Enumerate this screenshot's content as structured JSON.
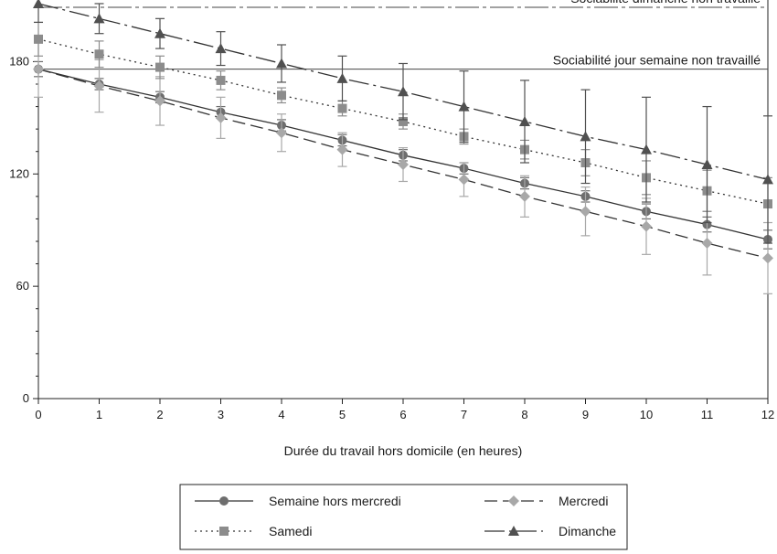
{
  "chart_data": {
    "type": "line",
    "title": "",
    "xlabel": "Durée du travail hors domicile (en heures)",
    "ylabel": "",
    "xlim": [
      0,
      12
    ],
    "ylim": [
      0,
      210
    ],
    "x_ticks": [
      0,
      1,
      2,
      3,
      4,
      5,
      6,
      7,
      8,
      9,
      10,
      11,
      12
    ],
    "y_ticks": [
      0,
      60,
      120,
      180
    ],
    "grid": false,
    "legend_position": "bottom",
    "x": [
      0,
      1,
      2,
      3,
      4,
      5,
      6,
      7,
      8,
      9,
      10,
      11,
      12
    ],
    "reference_lines": [
      {
        "label": "Sociabilité dimanche non travaillé",
        "y": 209
      },
      {
        "label": "Sociabilité jour semaine non travaillé",
        "y": 176
      }
    ],
    "series": [
      {
        "name": "Semaine hors mercredi",
        "marker": "circle",
        "dash": "solid",
        "color": "#6e6e6e",
        "values": [
          176,
          168,
          161,
          153,
          146,
          138,
          130,
          123,
          115,
          108,
          100,
          93,
          85
        ],
        "err": [
          4,
          3,
          3,
          3,
          3,
          3,
          3,
          3,
          3,
          3,
          4,
          4,
          5
        ]
      },
      {
        "name": "Mercredi",
        "marker": "diamond",
        "dash": "long-dash",
        "color": "#a8a8a8",
        "values": [
          176,
          167,
          159,
          150,
          142,
          133,
          125,
          117,
          108,
          100,
          92,
          83,
          75
        ],
        "err": [
          15,
          14,
          13,
          11,
          10,
          9,
          9,
          9,
          11,
          13,
          15,
          17,
          19
        ]
      },
      {
        "name": "Samedi",
        "marker": "square",
        "dash": "dotted",
        "color": "#8c8c8c",
        "values": [
          192,
          184,
          177,
          170,
          162,
          155,
          148,
          140,
          133,
          126,
          118,
          111,
          104
        ],
        "err": [
          9,
          7,
          6,
          5,
          4,
          4,
          4,
          4,
          5,
          7,
          9,
          11,
          14
        ]
      },
      {
        "name": "Dimanche",
        "marker": "triangle",
        "dash": "dash-dot",
        "color": "#505050",
        "values": [
          211,
          203,
          195,
          187,
          179,
          171,
          164,
          156,
          148,
          140,
          133,
          125,
          117
        ],
        "err": [
          10,
          8,
          8,
          9,
          10,
          12,
          15,
          19,
          22,
          25,
          28,
          31,
          34
        ]
      }
    ]
  }
}
